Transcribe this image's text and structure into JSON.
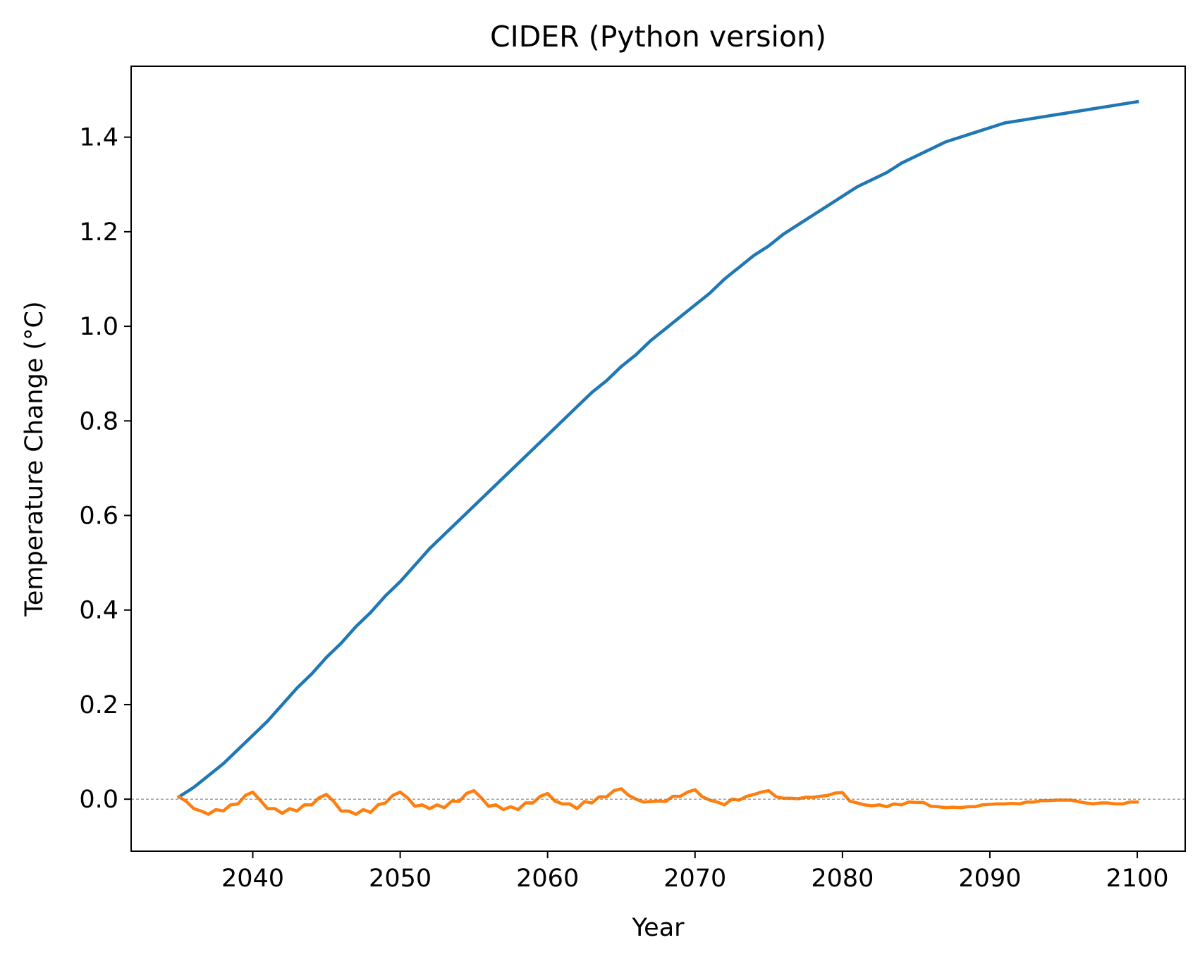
{
  "chart_data": {
    "type": "line",
    "title": "CIDER (Python version)",
    "xlabel": "Year",
    "ylabel": "Temperature Change (°C)",
    "xlim": [
      2031.75,
      2103.25
    ],
    "ylim": [
      -0.11,
      1.55
    ],
    "xticks": [
      2040,
      2050,
      2060,
      2070,
      2080,
      2090,
      2100
    ],
    "yticks": [
      0.0,
      0.2,
      0.4,
      0.6,
      0.8,
      1.0,
      1.2,
      1.4
    ],
    "ytick_labels": [
      "0.0",
      "0.2",
      "0.4",
      "0.6",
      "0.8",
      "1.0",
      "1.2",
      "1.4"
    ],
    "grid": false,
    "reference_line": {
      "y": 0.0,
      "color": "#808080",
      "style": "dashed"
    },
    "series": [
      {
        "color": "#1f77b4",
        "x": [
          2035,
          2036,
          2037,
          2038,
          2039,
          2040,
          2041,
          2042,
          2043,
          2044,
          2045,
          2046,
          2047,
          2048,
          2049,
          2050,
          2051,
          2052,
          2053,
          2054,
          2055,
          2056,
          2057,
          2058,
          2059,
          2060,
          2061,
          2062,
          2063,
          2064,
          2065,
          2066,
          2067,
          2068,
          2069,
          2070,
          2071,
          2072,
          2073,
          2074,
          2075,
          2076,
          2077,
          2078,
          2079,
          2080,
          2081,
          2082,
          2083,
          2084,
          2085,
          2086,
          2087,
          2088,
          2089,
          2090,
          2091,
          2092,
          2093,
          2094,
          2095,
          2096,
          2097,
          2098,
          2099,
          2100
        ],
        "y": [
          0.005,
          0.025,
          0.05,
          0.075,
          0.105,
          0.135,
          0.165,
          0.2,
          0.235,
          0.265,
          0.3,
          0.33,
          0.365,
          0.395,
          0.43,
          0.46,
          0.495,
          0.53,
          0.56,
          0.59,
          0.62,
          0.65,
          0.68,
          0.71,
          0.74,
          0.77,
          0.8,
          0.83,
          0.86,
          0.885,
          0.915,
          0.94,
          0.97,
          0.995,
          1.02,
          1.045,
          1.07,
          1.1,
          1.125,
          1.15,
          1.17,
          1.195,
          1.215,
          1.235,
          1.255,
          1.275,
          1.295,
          1.31,
          1.325,
          1.345,
          1.36,
          1.375,
          1.39,
          1.4,
          1.41,
          1.42,
          1.43,
          1.435,
          1.44,
          1.445,
          1.45,
          1.455,
          1.46,
          1.465,
          1.47,
          1.475
        ]
      },
      {
        "color": "#ff7f0e",
        "x": [
          2035,
          2035.5,
          2036,
          2036.5,
          2037,
          2037.5,
          2038,
          2038.5,
          2039,
          2039.5,
          2040,
          2040.5,
          2041,
          2041.5,
          2042,
          2042.5,
          2043,
          2043.5,
          2044,
          2044.5,
          2045,
          2045.5,
          2046,
          2046.5,
          2047,
          2047.5,
          2048,
          2048.5,
          2049,
          2049.5,
          2050,
          2050.5,
          2051,
          2051.5,
          2052,
          2052.5,
          2053,
          2053.5,
          2054,
          2054.5,
          2055,
          2055.5,
          2056,
          2056.5,
          2057,
          2057.5,
          2058,
          2058.5,
          2059,
          2059.5,
          2060,
          2060.5,
          2061,
          2061.5,
          2062,
          2062.5,
          2063,
          2063.5,
          2064,
          2064.5,
          2065,
          2065.5,
          2066,
          2066.5,
          2067,
          2067.5,
          2068,
          2068.5,
          2069,
          2069.5,
          2070,
          2070.5,
          2071,
          2071.5,
          2072,
          2072.5,
          2073,
          2073.5,
          2074,
          2074.5,
          2075,
          2075.5,
          2076,
          2076.5,
          2077,
          2077.5,
          2078,
          2078.5,
          2079,
          2079.5,
          2080,
          2080.5,
          2081,
          2081.5,
          2082,
          2082.5,
          2083,
          2083.5,
          2084,
          2084.5,
          2085,
          2085.5,
          2086,
          2086.5,
          2087,
          2087.5,
          2088,
          2088.5,
          2089,
          2089.5,
          2090,
          2090.5,
          2091,
          2091.5,
          2092,
          2092.5,
          2093,
          2093.5,
          2094,
          2094.5,
          2095,
          2095.5,
          2096,
          2096.5,
          2097,
          2097.5,
          2098,
          2098.5,
          2099,
          2099.5,
          2100
        ],
        "y": [
          0.005,
          -0.005,
          -0.02,
          -0.025,
          -0.032,
          -0.022,
          -0.025,
          -0.012,
          -0.01,
          0.008,
          0.015,
          -0.002,
          -0.02,
          -0.02,
          -0.03,
          -0.02,
          -0.025,
          -0.012,
          -0.012,
          0.003,
          0.01,
          -0.005,
          -0.025,
          -0.025,
          -0.032,
          -0.022,
          -0.028,
          -0.012,
          -0.008,
          0.008,
          0.015,
          0.003,
          -0.015,
          -0.012,
          -0.02,
          -0.012,
          -0.018,
          -0.004,
          -0.005,
          0.012,
          0.018,
          0.003,
          -0.015,
          -0.012,
          -0.022,
          -0.016,
          -0.022,
          -0.008,
          -0.008,
          0.006,
          0.012,
          -0.004,
          -0.01,
          -0.01,
          -0.02,
          -0.005,
          -0.008,
          0.005,
          0.005,
          0.018,
          0.022,
          0.008,
          0,
          -0.006,
          -0.005,
          -0.004,
          -0.005,
          0.006,
          0.006,
          0.015,
          0.02,
          0.005,
          -0.002,
          -0.006,
          -0.012,
          0,
          -0.002,
          0.006,
          0.01,
          0.015,
          0.018,
          0.005,
          0.002,
          0.002,
          0.001,
          0.004,
          0.004,
          0.006,
          0.008,
          0.013,
          0.014,
          -0.004,
          -0.008,
          -0.012,
          -0.014,
          -0.012,
          -0.016,
          -0.01,
          -0.012,
          -0.006,
          -0.007,
          -0.007,
          -0.015,
          -0.016,
          -0.018,
          -0.017,
          -0.018,
          -0.016,
          -0.016,
          -0.012,
          -0.011,
          -0.01,
          -0.01,
          -0.009,
          -0.01,
          -0.006,
          -0.006,
          -0.003,
          -0.003,
          -0.002,
          -0.002,
          -0.002,
          -0.005,
          -0.008,
          -0.01,
          -0.008,
          -0.008,
          -0.01,
          -0.01,
          -0.006,
          -0.006
        ]
      }
    ]
  }
}
